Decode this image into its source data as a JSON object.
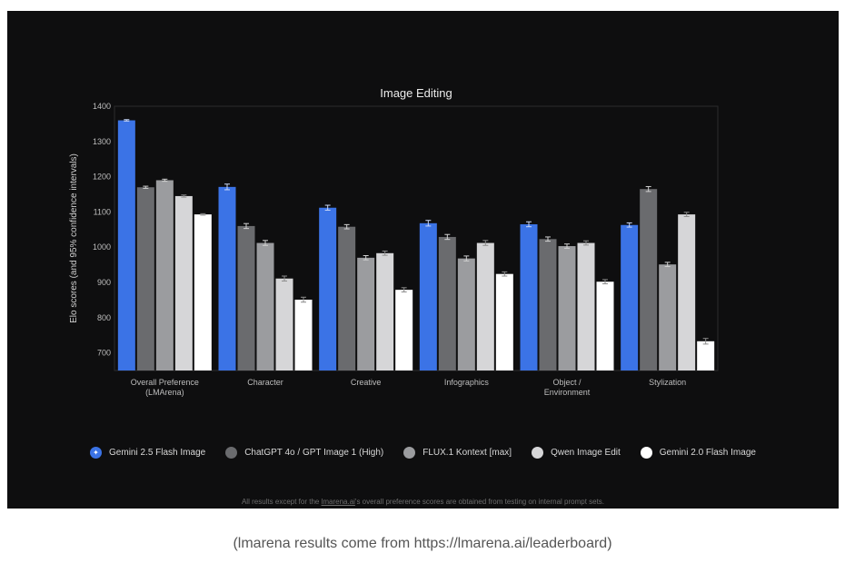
{
  "colors": {
    "background": "#0e0e0f",
    "text": "#d8d8d8",
    "series": [
      "#3b73e6",
      "#6a6b6e",
      "#9b9c9f",
      "#d6d6d8",
      "#ffffff"
    ]
  },
  "chart_data": {
    "type": "bar",
    "title": "Image Editing",
    "xlabel": "",
    "ylabel": "Elo scores (and 95% confidence intervals)",
    "ylim": [
      650,
      1400
    ],
    "yticks": [
      700,
      800,
      900,
      1000,
      1100,
      1200,
      1300,
      1400
    ],
    "grid": false,
    "error_bars": true,
    "legend_position": "bottom",
    "categories": [
      [
        "Overall Preference",
        "(LMArena)"
      ],
      [
        "Character"
      ],
      [
        "Creative"
      ],
      [
        "Infographics"
      ],
      [
        "Object /",
        "Environment"
      ],
      [
        "Stylization"
      ]
    ],
    "series": [
      {
        "name": "Gemini 2.5 Flash Image",
        "values": [
          1360,
          1171,
          1112,
          1068,
          1065,
          1063
        ],
        "ci": [
          2,
          8,
          7,
          8,
          7,
          6
        ]
      },
      {
        "name": "ChatGPT 4o / GPT Image 1 (High)",
        "values": [
          1170,
          1060,
          1058,
          1029,
          1023,
          1165
        ],
        "ci": [
          3,
          7,
          6,
          7,
          6,
          7
        ]
      },
      {
        "name": "FLUX.1 Kontext [max]",
        "values": [
          1190,
          1012,
          970,
          968,
          1003,
          951
        ],
        "ci": [
          3,
          7,
          6,
          7,
          6,
          6
        ]
      },
      {
        "name": "Qwen Image Edit",
        "values": [
          1145,
          911,
          983,
          1012,
          1012,
          1093
        ],
        "ci": [
          3,
          7,
          6,
          7,
          6,
          6
        ]
      },
      {
        "name": "Gemini 2.0 Flash Image",
        "values": [
          1093,
          851,
          879,
          924,
          902,
          733
        ],
        "ci": [
          2,
          7,
          6,
          6,
          6,
          8
        ]
      }
    ]
  },
  "legend_icon": "gemini-sparkle-icon",
  "legend_icon_glyph": "✦",
  "footnote": {
    "before": "All results except for the ",
    "link": "lmarena.ai",
    "after": "'s overall preference scores are obtained from testing on internal prompt sets."
  },
  "caption": "(lmarena results come from https://lmarena.ai/leaderboard)"
}
